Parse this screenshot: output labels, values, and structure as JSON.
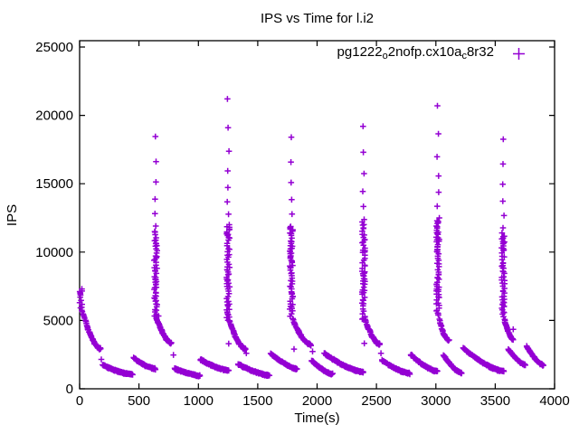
{
  "window": {
    "kind": "gnuplot-chart-image"
  },
  "chart_data": {
    "type": "scatter",
    "title": "IPS vs Time for l.i2",
    "xlabel": "Time(s)",
    "ylabel": "IPS",
    "xlim": [
      0,
      4000
    ],
    "ylim": [
      0,
      25000
    ],
    "ylim_draw": [
      0,
      25460
    ],
    "xticks": [
      0,
      500,
      1000,
      1500,
      2000,
      2500,
      3000,
      3500,
      4000
    ],
    "yticks": [
      0,
      5000,
      10000,
      15000,
      20000,
      25000
    ],
    "grid": false,
    "marker": "plus",
    "marker_color": "#9400D3",
    "legend": {
      "position": "top-right-inside",
      "marker": "plus",
      "label_parts": [
        {
          "text": "pg1222"
        },
        {
          "text": "o",
          "sub": true
        },
        {
          "text": "2nofp.cx10a"
        },
        {
          "text": "c",
          "sub": true
        },
        {
          "text": "8r32"
        }
      ]
    },
    "render": {
      "marker_half": 3.3,
      "stroke_width": 1.5,
      "sparse_ratio": 0.11,
      "dense_step": 185,
      "col_jitter_s": 13,
      "decay_spacing_s": 4.5,
      "decay_pow": 1.7,
      "scallop_spacing_s": 4,
      "scallop_pow": 1.5,
      "seed": 20240501
    },
    "events": [
      {
        "name": "initial-load",
        "spike_t": 12,
        "column": {
          "peak": 7300,
          "dense_top": 7300,
          "bottom": 5600
        },
        "decay": {
          "t0": 25,
          "v0": 5650,
          "t1": 175,
          "v1": 2950
        },
        "outliers": [
          [
            183,
            2150
          ]
        ],
        "scallops": [
          {
            "t0": 195,
            "t1": 445,
            "v0": 1750,
            "v1": 1060
          },
          {
            "t0": 455,
            "t1": 636,
            "v0": 2270,
            "v1": 1480
          }
        ]
      },
      {
        "name": "cycle-2",
        "spike_t": 640,
        "column": {
          "peak": 18450,
          "dense_top": 11500,
          "bottom": 5100
        },
        "decay": {
          "t0": 652,
          "v0": 5050,
          "t1": 775,
          "v1": 3350
        },
        "outliers": [
          [
            664,
            5325
          ],
          [
            790,
            2470
          ]
        ],
        "scallops": [
          {
            "t0": 800,
            "t1": 1010,
            "v0": 1500,
            "v1": 980
          },
          {
            "t0": 1020,
            "t1": 1255,
            "v0": 2150,
            "v1": 1360
          }
        ]
      },
      {
        "name": "cycle-3",
        "spike_t": 1250,
        "column": {
          "peak": 21200,
          "dense_top": 12000,
          "bottom": 5000
        },
        "decay": {
          "t0": 1262,
          "v0": 5000,
          "t1": 1392,
          "v1": 2950
        },
        "outliers": [
          [
            1256,
            3300
          ],
          [
            1404,
            2600
          ]
        ],
        "scallops": [
          {
            "t0": 1334,
            "t1": 1600,
            "v0": 1820,
            "v1": 1000
          },
          {
            "t0": 1610,
            "t1": 1832,
            "v0": 2600,
            "v1": 1480
          }
        ]
      },
      {
        "name": "cycle-4",
        "spike_t": 1783,
        "column": {
          "peak": 18400,
          "dense_top": 11800,
          "bottom": 5200
        },
        "decay": {
          "t0": 1795,
          "v0": 5100,
          "t1": 1945,
          "v1": 3250
        },
        "outliers": [
          [
            1806,
            2900
          ],
          [
            1962,
            2730
          ]
        ],
        "scallops": [
          {
            "t0": 1955,
            "t1": 2130,
            "v0": 2080,
            "v1": 1100
          },
          {
            "t0": 2060,
            "t1": 2390,
            "v0": 2600,
            "v1": 1240
          }
        ]
      },
      {
        "name": "cycle-5",
        "spike_t": 2392,
        "column": {
          "peak": 19200,
          "dense_top": 12200,
          "bottom": 5100
        },
        "decay": {
          "t0": 2404,
          "v0": 5050,
          "t1": 2525,
          "v1": 3300
        },
        "outliers": [
          [
            2398,
            3320
          ],
          [
            2538,
            2600
          ]
        ],
        "scallops": [
          {
            "t0": 2545,
            "t1": 2780,
            "v0": 2100,
            "v1": 1150
          },
          {
            "t0": 2790,
            "t1": 3012,
            "v0": 2500,
            "v1": 1300
          }
        ]
      },
      {
        "name": "cycle-6",
        "spike_t": 3017,
        "column": {
          "peak": 20700,
          "dense_top": 12500,
          "bottom": 5200
        },
        "decay": {
          "t0": 3029,
          "v0": 5100,
          "t1": 3105,
          "v1": 3570
        },
        "outliers": [
          [
            3112,
            3572
          ]
        ],
        "scallops": [
          {
            "t0": 3065,
            "t1": 3215,
            "v0": 2470,
            "v1": 1170
          },
          {
            "t0": 3230,
            "t1": 3570,
            "v0": 2990,
            "v1": 1300
          }
        ]
      },
      {
        "name": "cycle-7",
        "spike_t": 3566,
        "column": {
          "peak": 18250,
          "dense_top": 11400,
          "bottom": 5100
        },
        "decay": {
          "t0": 3578,
          "v0": 5050,
          "t1": 3648,
          "v1": 3650
        },
        "outliers": [
          [
            3652,
            4351
          ]
        ],
        "scallops": [
          {
            "t0": 3610,
            "t1": 3755,
            "v0": 2920,
            "v1": 1750
          },
          {
            "t0": 3765,
            "t1": 3905,
            "v0": 3120,
            "v1": 1750
          }
        ]
      }
    ]
  }
}
